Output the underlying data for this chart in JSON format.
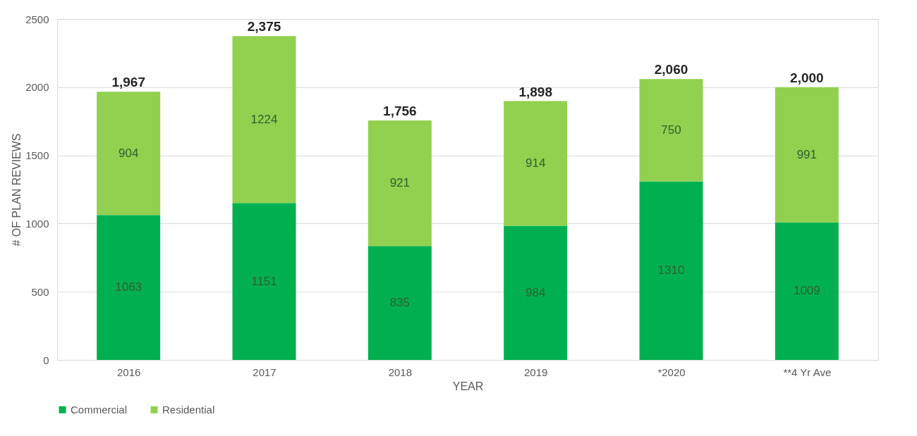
{
  "chart_data": {
    "type": "bar",
    "stacked": true,
    "xlabel": "YEAR",
    "ylabel": "# OF PLAN REVIEWS",
    "categories": [
      "2016",
      "2017",
      "2018",
      "2019",
      "*2020",
      "**4 Yr Ave"
    ],
    "series": [
      {
        "name": "Commercial",
        "color": "#00b050",
        "values": [
          1063,
          1151,
          835,
          984,
          1310,
          1009
        ]
      },
      {
        "name": "Residential",
        "color": "#92d050",
        "values": [
          904,
          1224,
          921,
          914,
          750,
          991
        ]
      }
    ],
    "totals": [
      "1,967",
      "2,375",
      "1,756",
      "1,898",
      "2,060",
      "2,000"
    ],
    "data_labels": true,
    "ylim": [
      0,
      2500
    ],
    "yticks": [
      0,
      500,
      1000,
      1500,
      2000,
      2500
    ],
    "grid": "y",
    "legend": "bottom"
  }
}
